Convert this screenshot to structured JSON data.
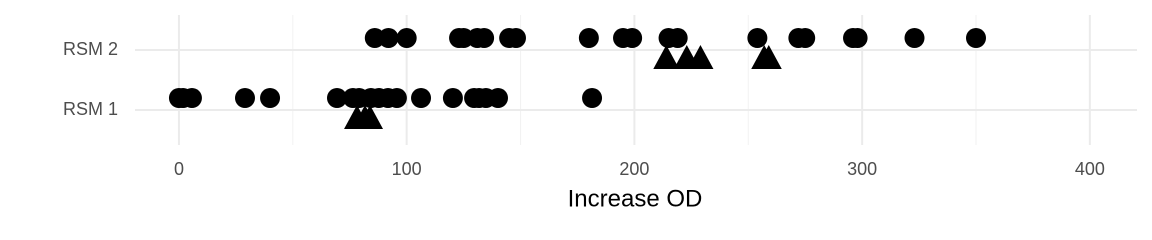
{
  "chart_data": {
    "type": "strip",
    "x_label": "Increase OD",
    "categories": [
      "RSM 1",
      "RSM 2"
    ],
    "xlim": [
      -19.3,
      420.7
    ],
    "xticks": [
      0,
      100,
      200,
      300,
      400
    ],
    "x_minor_grid": [
      50,
      150,
      250,
      350
    ],
    "grid": true,
    "series": [
      {
        "shape": "circle",
        "color": "#000000",
        "x": [
          86,
          92,
          100,
          123,
          125,
          131,
          134,
          145,
          148,
          180,
          195,
          199,
          215,
          219,
          254,
          272,
          275,
          296,
          298,
          323,
          350,
          0,
          1.8,
          5.7,
          29,
          40,
          69.4,
          76.4,
          79.1,
          84.3,
          87.8,
          91.8,
          95.7,
          106.3,
          120.3,
          129.6,
          131.8,
          134.8,
          140.1,
          181.4
        ],
        "y": [
          "RSM 2",
          "RSM 2",
          "RSM 2",
          "RSM 2",
          "RSM 2",
          "RSM 2",
          "RSM 2",
          "RSM 2",
          "RSM 2",
          "RSM 2",
          "RSM 2",
          "RSM 2",
          "RSM 2",
          "RSM 2",
          "RSM 2",
          "RSM 2",
          "RSM 2",
          "RSM 2",
          "RSM 2",
          "RSM 2",
          "RSM 2",
          "RSM 1",
          "RSM 1",
          "RSM 1",
          "RSM 1",
          "RSM 1",
          "RSM 1",
          "RSM 1",
          "RSM 1",
          "RSM 1",
          "RSM 1",
          "RSM 1",
          "RSM 1",
          "RSM 1",
          "RSM 1",
          "RSM 1",
          "RSM 1",
          "RSM 1",
          "RSM 1",
          "RSM 1"
        ]
      },
      {
        "shape": "triangle",
        "color": "#000000",
        "x": [
          214,
          223,
          229,
          257,
          259,
          78.2,
          81.7,
          83.9
        ],
        "y": [
          "RSM 2",
          "RSM 2",
          "RSM 2",
          "RSM 2",
          "RSM 2",
          "RSM 1",
          "RSM 1",
          "RSM 1"
        ]
      }
    ]
  }
}
